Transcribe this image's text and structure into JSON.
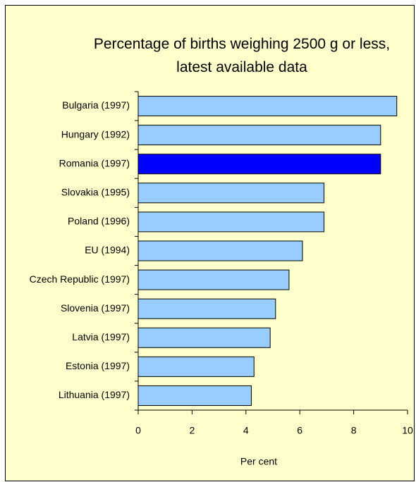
{
  "chart_data": {
    "type": "bar",
    "orientation": "horizontal",
    "title": "Percentage of births weighing 2500 g or less, latest available data",
    "xlabel": "Per cent",
    "categories": [
      "Bulgaria (1997)",
      "Hungary (1992)",
      "Romania (1997)",
      "Slovakia (1995)",
      "Poland (1996)",
      "EU (1994)",
      "Czech Republic (1997)",
      "Slovenia (1997)",
      "Latvia (1997)",
      "Estonia (1997)",
      "Lithuania (1997)"
    ],
    "values": [
      9.6,
      9.0,
      9.0,
      6.9,
      6.9,
      6.1,
      5.6,
      5.1,
      4.9,
      4.3,
      4.2
    ],
    "colors": [
      "#99ccff",
      "#99ccff",
      "#0000ff",
      "#99ccff",
      "#99ccff",
      "#99ccff",
      "#99ccff",
      "#99ccff",
      "#99ccff",
      "#99ccff",
      "#99ccff"
    ],
    "xlim": [
      0,
      10
    ],
    "xticks": [
      0,
      2,
      4,
      6,
      8,
      10
    ],
    "grid": false
  }
}
